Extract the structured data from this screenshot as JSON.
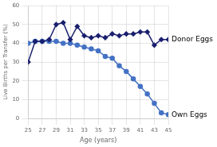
{
  "chart_data": {
    "type": "line",
    "x_label": "Age (years)",
    "y_label": "Live Births per Transfer (%)",
    "x": [
      25,
      26,
      27,
      28,
      29,
      30,
      31,
      32,
      33,
      34,
      35,
      36,
      37,
      38,
      39,
      40,
      41,
      42,
      43,
      44,
      45
    ],
    "series": [
      {
        "name": "Donor Eggs",
        "color": "#1a1f6e",
        "marker": "diamond",
        "values": [
          30,
          41,
          41,
          42,
          50,
          51,
          42,
          49,
          44,
          43,
          44,
          43,
          45,
          44,
          45,
          45,
          46,
          46,
          39,
          42,
          42
        ]
      },
      {
        "name": "Own Eggs",
        "color": "#4472c4",
        "marker": "circle",
        "values": [
          40,
          41,
          41,
          41,
          41,
          40,
          40,
          39,
          38,
          37,
          36,
          33,
          32,
          28,
          25,
          21,
          17,
          13,
          8,
          3,
          2
        ]
      }
    ],
    "xlim": [
      25,
      45
    ],
    "xticks": [
      25,
      27,
      29,
      31,
      33,
      35,
      37,
      39,
      41,
      43,
      45
    ],
    "ylim": [
      0,
      60
    ],
    "yticks": [
      0,
      10,
      20,
      30,
      40,
      50,
      60
    ],
    "grid": true
  }
}
